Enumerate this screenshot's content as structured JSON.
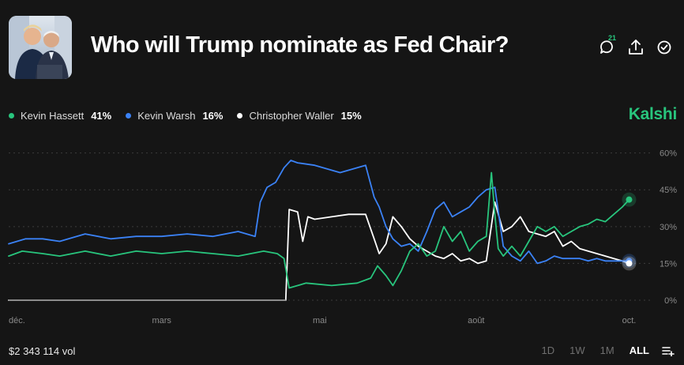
{
  "header": {
    "title": "Who will Trump nominate as Fed Chair?",
    "comment_count": "21",
    "thumbnail_icon": "portrait-photo-icon",
    "actions": [
      "comment-icon",
      "share-icon",
      "watch-check-icon"
    ]
  },
  "brand": {
    "name": "Kalshi",
    "color": "#28c57d"
  },
  "legend": [
    {
      "name": "Kevin Hassett",
      "pct": "41%",
      "color": "#28c57d"
    },
    {
      "name": "Kevin Warsh",
      "pct": "16%",
      "color": "#3b82f6"
    },
    {
      "name": "Christopher Waller",
      "pct": "15%",
      "color": "#ffffff"
    }
  ],
  "footer": {
    "volume": "$2 343 114 vol",
    "ranges": [
      "1D",
      "1W",
      "1M",
      "ALL"
    ],
    "active_range": "ALL"
  },
  "chart_data": {
    "type": "line",
    "title": "Who will Trump nominate as Fed Chair?",
    "x_tick_labels": [
      "déc.",
      "mars",
      "mai",
      "août",
      "oct."
    ],
    "x_tick_days": [
      0,
      90,
      183,
      275,
      365
    ],
    "x_range_days": [
      0,
      375
    ],
    "y_tick_labels": [
      "60%",
      "45%",
      "30%",
      "15%",
      "0%"
    ],
    "y_ticks": [
      60,
      45,
      30,
      15,
      0
    ],
    "ylim": [
      0,
      66
    ],
    "series": [
      {
        "name": "Kevin Hassett",
        "color": "#28c57d",
        "x": [
          0,
          8,
          20,
          30,
          45,
          60,
          75,
          90,
          105,
          120,
          135,
          150,
          158,
          162,
          164,
          165,
          175,
          190,
          205,
          213,
          217,
          222,
          226,
          231,
          236,
          241,
          246,
          251,
          256,
          261,
          266,
          271,
          276,
          281,
          284,
          286,
          288,
          291,
          296,
          301,
          306,
          311,
          316,
          321,
          326,
          331,
          336,
          341,
          346,
          351,
          356,
          361,
          365
        ],
        "values": [
          18,
          20,
          19,
          18,
          20,
          18,
          20,
          19,
          20,
          19,
          18,
          20,
          19,
          17,
          9,
          5,
          7,
          6,
          7,
          9,
          14,
          10,
          6,
          12,
          20,
          23,
          18,
          20,
          30,
          24,
          28,
          20,
          24,
          26,
          52,
          35,
          21,
          18,
          22,
          18,
          24,
          30,
          28,
          30,
          26,
          28,
          30,
          31,
          33,
          32,
          35,
          38,
          41
        ]
      },
      {
        "name": "Kevin Warsh",
        "color": "#3b82f6",
        "x": [
          0,
          10,
          20,
          30,
          45,
          60,
          75,
          90,
          105,
          120,
          135,
          145,
          148,
          152,
          157,
          162,
          166,
          170,
          180,
          195,
          210,
          215,
          218,
          222,
          226,
          231,
          236,
          241,
          246,
          251,
          256,
          261,
          266,
          271,
          276,
          281,
          286,
          291,
          296,
          301,
          306,
          311,
          316,
          321,
          326,
          331,
          336,
          341,
          346,
          351,
          356,
          361,
          365
        ],
        "values": [
          23,
          25,
          25,
          24,
          27,
          25,
          26,
          26,
          27,
          26,
          28,
          26,
          40,
          46,
          48,
          54,
          57,
          56,
          55,
          52,
          55,
          42,
          38,
          30,
          25,
          22,
          23,
          20,
          28,
          37,
          40,
          34,
          36,
          38,
          42,
          45,
          46,
          22,
          18,
          16,
          20,
          15,
          16,
          18,
          17,
          17,
          17,
          16,
          17,
          16,
          16,
          16,
          16
        ]
      },
      {
        "name": "Christopher Waller",
        "color": "#ffffff",
        "x": [
          0,
          40,
          80,
          120,
          160,
          163,
          165,
          170,
          173,
          176,
          180,
          190,
          200,
          210,
          215,
          218,
          222,
          226,
          231,
          236,
          241,
          246,
          251,
          256,
          261,
          266,
          271,
          276,
          281,
          286,
          291,
          296,
          301,
          306,
          311,
          316,
          321,
          326,
          331,
          336,
          341,
          346,
          351,
          356,
          361,
          365
        ],
        "values": [
          0,
          0,
          0,
          0,
          0,
          0,
          37,
          36,
          24,
          34,
          33,
          34,
          35,
          35,
          25,
          19,
          23,
          34,
          30,
          25,
          22,
          20,
          18,
          17,
          19,
          16,
          17,
          15,
          16,
          40,
          28,
          30,
          34,
          28,
          27,
          26,
          28,
          22,
          24,
          21,
          20,
          19,
          18,
          17,
          16,
          15
        ]
      }
    ]
  }
}
